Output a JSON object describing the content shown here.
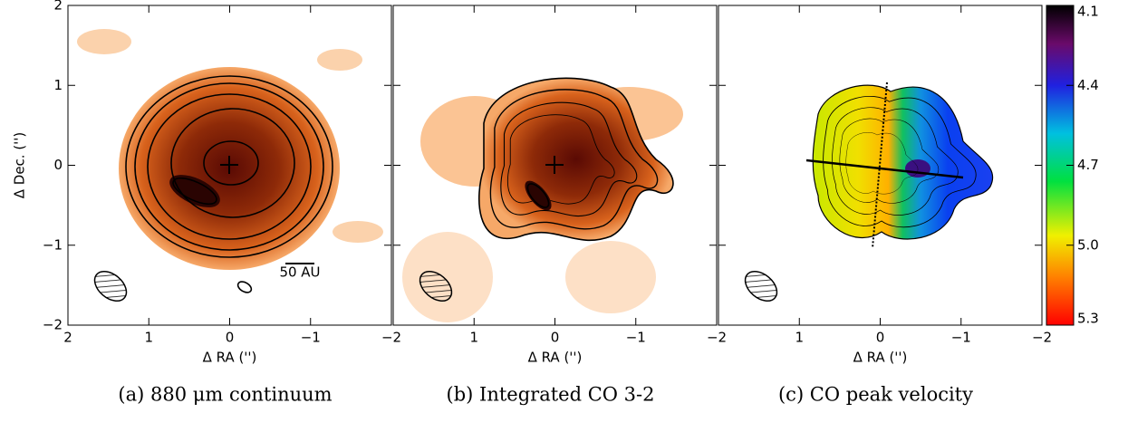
{
  "chart_data": [
    {
      "type": "image",
      "caption": "(a) 880 μm continuum",
      "x_label": "Δ RA ('')",
      "y_label": "Δ Dec. ('')",
      "xlim": [
        2,
        -2
      ],
      "ylim": [
        -2,
        2
      ],
      "xticks": [
        2,
        1,
        0,
        {
          "value": -1,
          "label": "−1"
        },
        {
          "value": -2,
          "label": "−2"
        }
      ],
      "yticks": [
        {
          "value": -2,
          "label": "−2"
        },
        {
          "value": -1,
          "label": "−1"
        },
        0,
        1,
        2
      ],
      "annotation": "50 AU"
    },
    {
      "type": "image",
      "caption": "(b) Integrated CO 3-2",
      "x_label": "Δ RA ('')",
      "xlim": [
        2,
        -2
      ],
      "ylim": [
        -2,
        2
      ],
      "xticks": [
        1,
        0,
        {
          "value": -1,
          "label": "−1"
        },
        {
          "value": -2,
          "label": "−2"
        }
      ]
    },
    {
      "type": "image",
      "caption": "(c) CO peak velocity",
      "x_label": "Δ RA ('')",
      "xlim": [
        2,
        -2
      ],
      "ylim": [
        -2,
        2
      ],
      "xticks": [
        1,
        0,
        {
          "value": -1,
          "label": "−1"
        },
        {
          "value": -2,
          "label": "−2"
        }
      ],
      "colorbar": {
        "lim": [
          5.3,
          4.1
        ],
        "ticks": [
          4.1,
          4.4,
          4.7,
          {
            "value": 5,
            "label": "5.0"
          },
          5.3
        ]
      }
    }
  ]
}
